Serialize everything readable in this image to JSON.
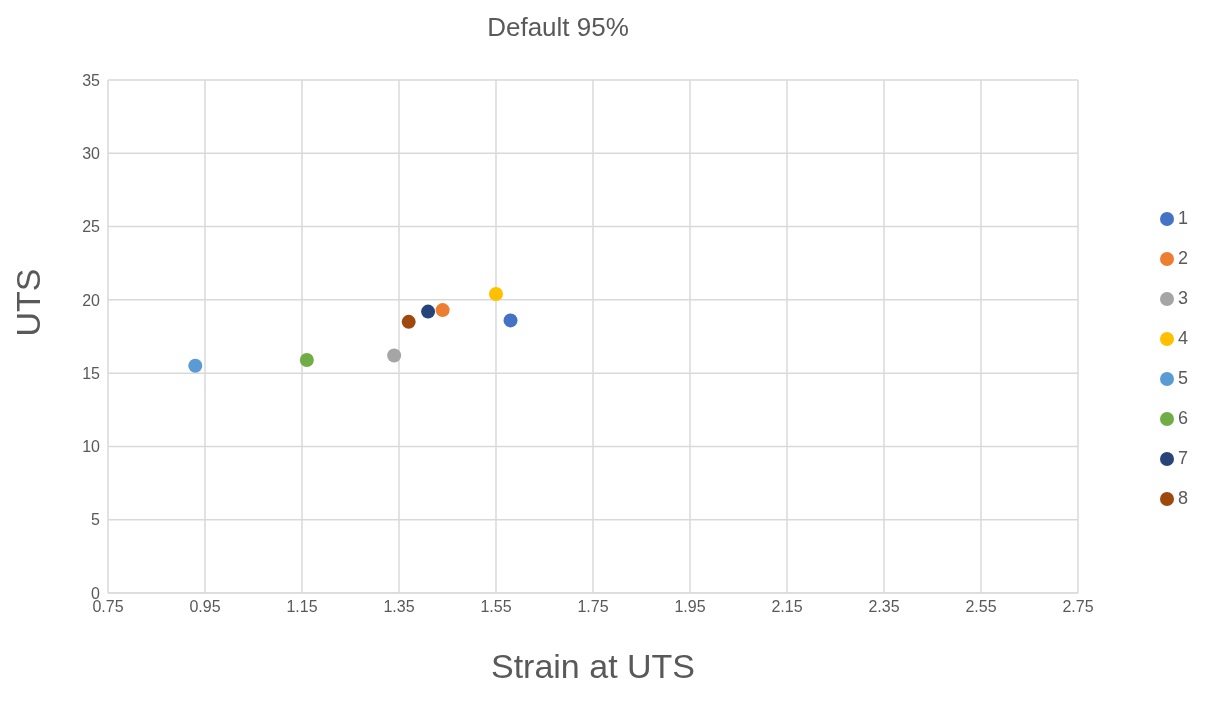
{
  "chart_data": {
    "type": "scatter",
    "title": "Default 95%",
    "xlabel": "Strain at UTS",
    "ylabel": "UTS",
    "xlim": [
      0.75,
      2.75
    ],
    "xticks": [
      0.75,
      0.95,
      1.15,
      1.35,
      1.55,
      1.75,
      1.95,
      2.15,
      2.35,
      2.55,
      2.75
    ],
    "ylim": [
      0,
      35
    ],
    "yticks": [
      0,
      5,
      10,
      15,
      20,
      25,
      30,
      35
    ],
    "grid": true,
    "legend": "right",
    "marker": "circle",
    "series": [
      {
        "name": "1",
        "color": "#4472c4",
        "x": [
          1.58
        ],
        "values": [
          18.6
        ]
      },
      {
        "name": "2",
        "color": "#ed7d31",
        "x": [
          1.44
        ],
        "values": [
          19.3
        ]
      },
      {
        "name": "3",
        "color": "#a5a5a5",
        "x": [
          1.34
        ],
        "values": [
          16.2
        ]
      },
      {
        "name": "4",
        "color": "#ffc000",
        "x": [
          1.55
        ],
        "values": [
          20.4
        ]
      },
      {
        "name": "5",
        "color": "#5b9bd5",
        "x": [
          0.93
        ],
        "values": [
          15.5
        ]
      },
      {
        "name": "6",
        "color": "#70ad47",
        "x": [
          1.16
        ],
        "values": [
          15.9
        ]
      },
      {
        "name": "7",
        "color": "#264478",
        "x": [
          1.41
        ],
        "values": [
          19.2
        ]
      },
      {
        "name": "8",
        "color": "#9e480e",
        "x": [
          1.37
        ],
        "values": [
          18.5
        ]
      }
    ]
  }
}
